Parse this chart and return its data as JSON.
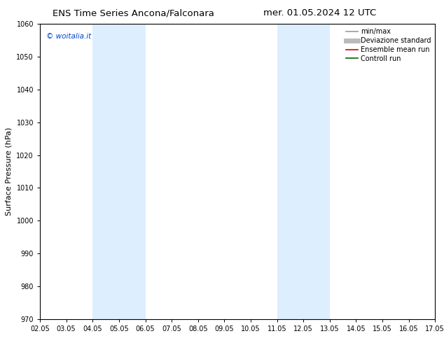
{
  "title_left": "ENS Time Series Ancona/Falconara",
  "title_right": "mer. 01.05.2024 12 UTC",
  "ylabel": "Surface Pressure (hPa)",
  "ylim": [
    970,
    1060
  ],
  "yticks": [
    970,
    980,
    990,
    1000,
    1010,
    1020,
    1030,
    1040,
    1050,
    1060
  ],
  "xlim_start": 0,
  "xlim_end": 15,
  "xtick_labels": [
    "02.05",
    "03.05",
    "04.05",
    "05.05",
    "06.05",
    "07.05",
    "08.05",
    "09.05",
    "10.05",
    "11.05",
    "12.05",
    "13.05",
    "14.05",
    "15.05",
    "16.05",
    "17.05"
  ],
  "shaded_bands": [
    {
      "xstart": 2,
      "xend": 4,
      "color": "#ddeeff"
    },
    {
      "xstart": 9,
      "xend": 11,
      "color": "#ddeeff"
    }
  ],
  "watermark_text": "© woitalia.it",
  "watermark_color": "#0044cc",
  "legend_entries": [
    {
      "label": "min/max",
      "color": "#999999",
      "lw": 1.2
    },
    {
      "label": "Deviazione standard",
      "color": "#bbbbbb",
      "lw": 5
    },
    {
      "label": "Ensemble mean run",
      "color": "#dd0000",
      "lw": 1.2
    },
    {
      "label": "Controll run",
      "color": "#006600",
      "lw": 1.2
    }
  ],
  "bg_color": "#ffffff",
  "title_fontsize": 9.5,
  "tick_fontsize": 7,
  "ylabel_fontsize": 8,
  "legend_fontsize": 7,
  "watermark_fontsize": 7.5
}
